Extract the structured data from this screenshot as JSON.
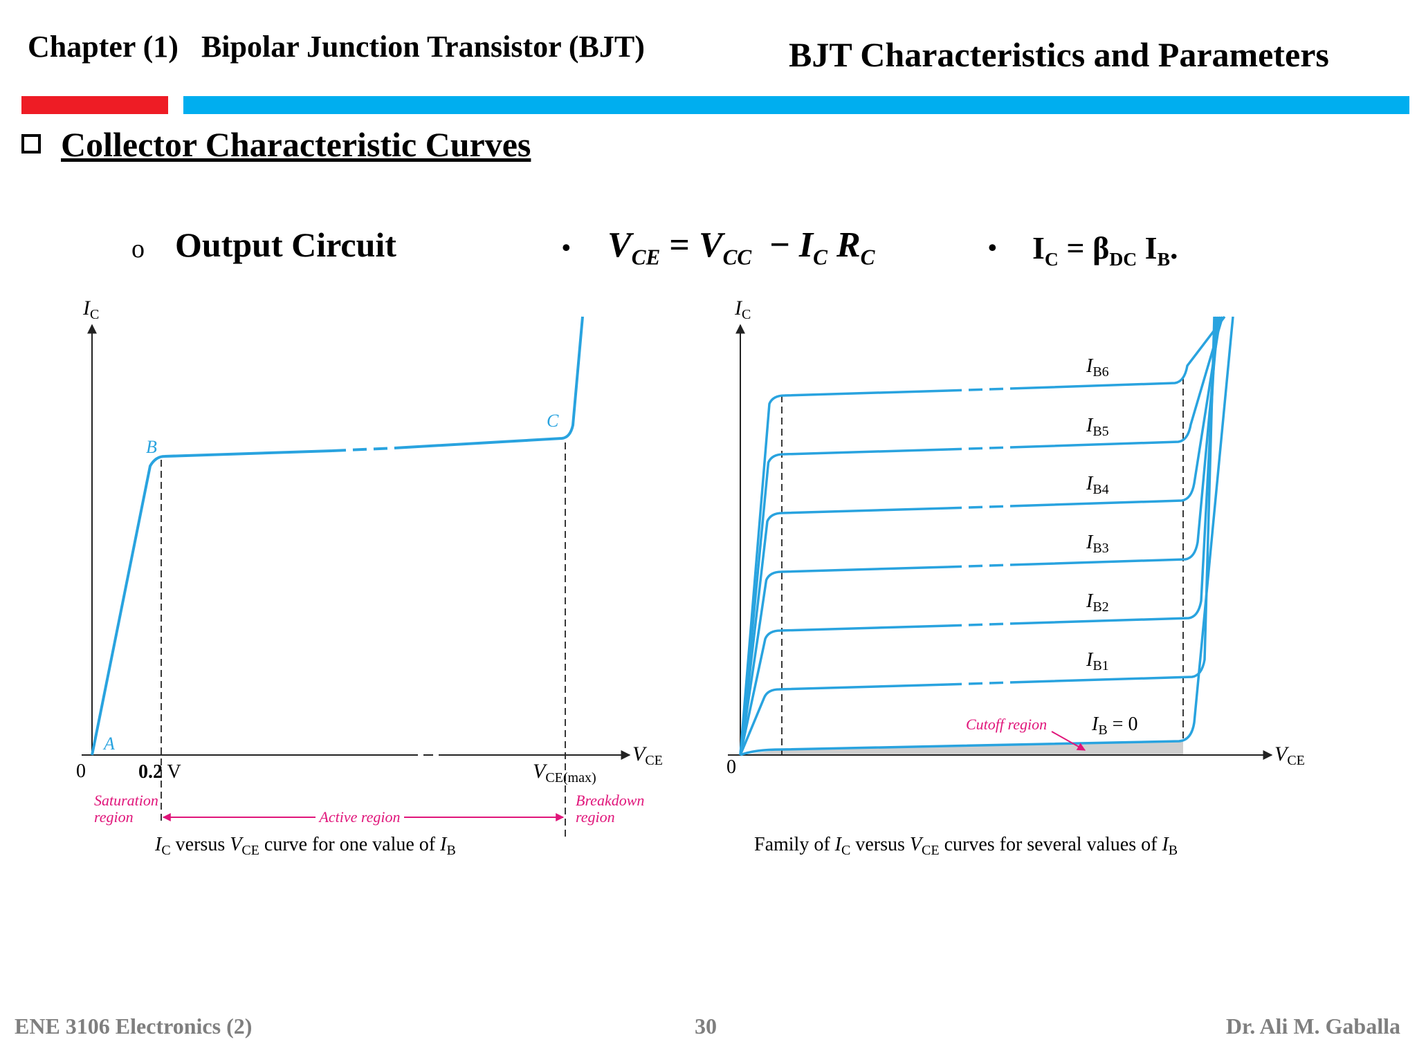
{
  "header": {
    "chapter": "Chapter (1)   Bipolar Junction Transistor (BJT)",
    "topic": "BJT Characteristics and Parameters"
  },
  "section": {
    "title": "Collector Characteristic Curves"
  },
  "subsection": {
    "bullet": "o",
    "title": "Output Circuit"
  },
  "equations": {
    "eq1": {
      "lhs": "V",
      "lhs_sub": "CE",
      "eq": " = ",
      "v": "V",
      "v_sub": "CC",
      "minus": "  − ",
      "i": "I",
      "i_sub": "C",
      "r": " R",
      "r_sub": "C"
    },
    "eq2": {
      "ic": "I",
      "ic_sub": "C",
      "eq": " = ",
      "beta": "β",
      "beta_sub": "DC",
      "ib": " I",
      "ib_sub": "B",
      "end": "."
    }
  },
  "left_diagram": {
    "y_axis": "I",
    "y_axis_sub": "C",
    "x_axis": "V",
    "x_axis_sub": "CE",
    "origin": "0",
    "points": [
      "A",
      "B",
      "C"
    ],
    "tick_02": "0.2",
    "tick_02_unit": " V",
    "vce_max": "V",
    "vce_max_sub": "CE(max)",
    "saturation": [
      "Saturation",
      "region"
    ],
    "active": "Active region",
    "breakdown": [
      "Breakdown",
      "region"
    ],
    "caption": {
      "p1": "I",
      "p1s": "C",
      "p2": " versus ",
      "p3": "V",
      "p3s": "CE",
      "p4": " curve for one value of ",
      "p5": "I",
      "p5s": "B"
    }
  },
  "right_diagram": {
    "y_axis": "I",
    "y_axis_sub": "C",
    "x_axis": "V",
    "x_axis_sub": "CE",
    "origin": "0",
    "curve_labels": [
      {
        "main": "I",
        "sub": "B6"
      },
      {
        "main": "I",
        "sub": "B5"
      },
      {
        "main": "I",
        "sub": "B4"
      },
      {
        "main": "I",
        "sub": "B3"
      },
      {
        "main": "I",
        "sub": "B2"
      },
      {
        "main": "I",
        "sub": "B1"
      }
    ],
    "zero_label": {
      "main": "I",
      "sub": "B",
      "rest": " = 0"
    },
    "cutoff": "Cutoff region",
    "caption": {
      "p0": "Family of ",
      "p1": "I",
      "p1s": "C",
      "p2": " versus ",
      "p3": "V",
      "p3s": "CE",
      "p4": " curves for several values of ",
      "p5": "I",
      "p5s": "B"
    }
  },
  "colors": {
    "curve": "#29a3df",
    "annotation": "#e0157a",
    "red_bar": "#ee1c25",
    "blue_bar": "#00aeef",
    "footer": "#7f7f7f"
  },
  "footer": {
    "course": "ENE 3106 Electronics  (2)",
    "page": "30",
    "author": "Dr. Ali M. Gaballa"
  }
}
